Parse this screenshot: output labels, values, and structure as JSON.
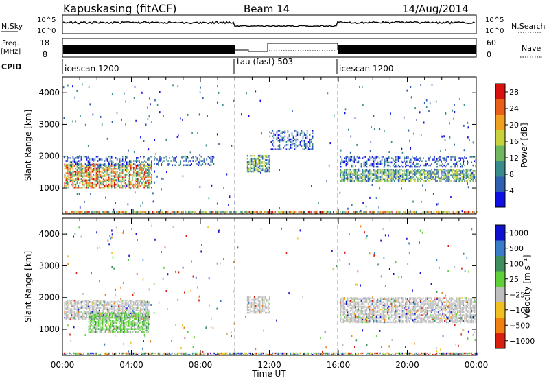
{
  "header": {
    "station": "Kapuskasing (fitACF)",
    "beam": "Beam 14",
    "date": "14/Aug/2014"
  },
  "top_panels": {
    "nsky_label": "N.Sky",
    "nsky_ticks": [
      "10^5",
      "10^0"
    ],
    "nsearch_label": "N.Search",
    "nsearch_ticks": [
      "10^5",
      "10^0"
    ],
    "freq_label": "Freq.",
    "freq_unit": "[MHz]",
    "freq_ticks": [
      "18",
      "8"
    ],
    "nave_label": "Nave",
    "nave_ticks": [
      "60",
      "0"
    ],
    "cpid_label": "CPID",
    "cpid_segments": [
      {
        "label": "icescan 1200",
        "start_h": 0,
        "end_h": 10
      },
      {
        "label": "tau (fast) 503",
        "start_h": 10,
        "end_h": 16
      },
      {
        "label": "icescan 1200",
        "start_h": 16,
        "end_h": 24
      }
    ]
  },
  "chart_data": [
    {
      "type": "heatmap",
      "title": "",
      "xlabel": "Time UT",
      "ylabel": "Slant Range [km]",
      "xlim": [
        0,
        24
      ],
      "ylim": [
        180,
        4500
      ],
      "yticks": [
        1000,
        2000,
        3000,
        4000
      ],
      "colorbar": {
        "label": "Power [dB]",
        "ticks": [
          "4",
          "8",
          "12",
          "16",
          "20",
          "24",
          "28"
        ],
        "range": [
          0,
          30
        ]
      },
      "bands": [
        {
          "t_start": 0.1,
          "t_end": 5.2,
          "r_low": 1000,
          "r_high": 1750,
          "level": "high"
        },
        {
          "t_start": 0.1,
          "t_end": 8.8,
          "r_low": 1700,
          "r_high": 2000,
          "level": "low"
        },
        {
          "t_start": 10.7,
          "t_end": 12.0,
          "r_low": 1500,
          "r_high": 2000,
          "level": "medium"
        },
        {
          "t_start": 12.0,
          "t_end": 14.5,
          "r_low": 2200,
          "r_high": 2800,
          "level": "low"
        },
        {
          "t_start": 16.1,
          "t_end": 24,
          "r_low": 1650,
          "r_high": 2000,
          "level": "low"
        },
        {
          "t_start": 16.1,
          "t_end": 24,
          "r_low": 1200,
          "r_high": 1600,
          "level": "medium"
        },
        {
          "t_start": 0,
          "t_end": 24,
          "r_low": 180,
          "r_high": 260,
          "level": "high"
        }
      ]
    },
    {
      "type": "heatmap",
      "title": "",
      "xlabel": "Time UT",
      "ylabel": "Slant Range [km]",
      "xlim": [
        0,
        24
      ],
      "ylim": [
        180,
        4500
      ],
      "yticks": [
        1000,
        2000,
        3000,
        4000
      ],
      "xticks": [
        "00:00",
        "04:00",
        "08:00",
        "12:00",
        "16:00",
        "20:00",
        "00:00"
      ],
      "colorbar": {
        "label": "Velocity [m s⁻¹]",
        "ticks": [
          "1000",
          "500",
          "100",
          "25",
          "−25",
          "−100",
          "−500",
          "−1000"
        ]
      },
      "bands": [
        {
          "t_start": 0.1,
          "t_end": 5.0,
          "r_low": 1300,
          "r_high": 1900,
          "level": "ground"
        },
        {
          "t_start": 1.5,
          "t_end": 5.0,
          "r_low": 900,
          "r_high": 1500,
          "level": "positive"
        },
        {
          "t_start": 10.7,
          "t_end": 12.0,
          "r_low": 1500,
          "r_high": 2000,
          "level": "ground"
        },
        {
          "t_start": 16.1,
          "t_end": 24,
          "r_low": 1200,
          "r_high": 2000,
          "level": "ground"
        },
        {
          "t_start": 0,
          "t_end": 24,
          "r_low": 180,
          "r_high": 260,
          "level": "mixed"
        }
      ]
    }
  ],
  "colors": {
    "power_scale": [
      "#1010e6",
      "#2f5fb0",
      "#3a8c8c",
      "#6fb860",
      "#c8d23c",
      "#f0a020",
      "#e86018",
      "#d81010"
    ],
    "velocity_scale": [
      "#1010d0",
      "#3a7cc8",
      "#3f8f5e",
      "#5fcf3a",
      "#bfbfbf",
      "#f0c020",
      "#f08010",
      "#d82010"
    ],
    "divider": "#9a9a9a"
  }
}
